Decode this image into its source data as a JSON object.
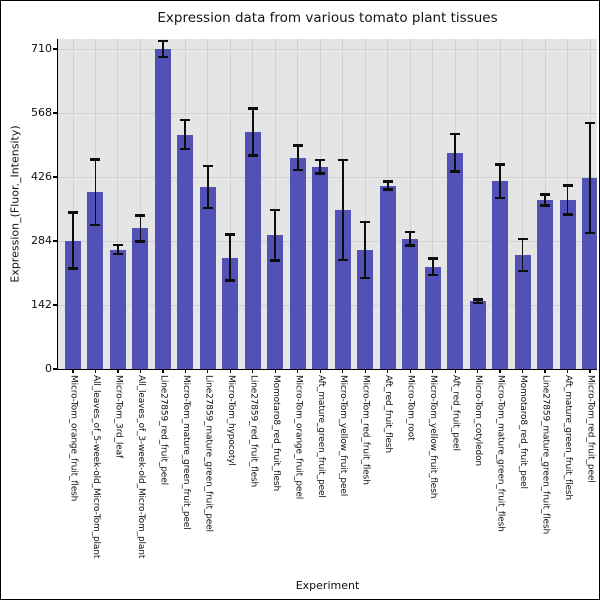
{
  "chart_data": {
    "type": "bar",
    "title": "Expression data from various tomato plant tissues",
    "xlabel": "Experiment",
    "ylabel": "Expression_(Fluor._Intensity)",
    "ylim": [
      0,
      732
    ],
    "yticks": [
      0,
      142,
      284,
      426,
      568,
      710
    ],
    "grid": true,
    "legend_position": "none",
    "bar_color": "#5251b6",
    "error_color": "#0d0d0d",
    "plot_background": "#e5e5e5",
    "grid_color": "#d2d2d2",
    "categories": [
      "Micro-Tom_orange_fruit_flesh",
      "All_leaves_of_5-week-old_Micro-Tom_plant",
      "Micro-Tom_3rd_leaf",
      "All_leaves_of_3-week-old_Micro-Tom_plant",
      "Line27859_red_fruit_peel",
      "Micro-Tom_mature_green_fruit_peel",
      "Line27859_mature_green_fruit_peel",
      "Micro-Tom_hypocotyl",
      "Line27859_red_fruit_flesh",
      "Momotaro8_red_fruit_flesh",
      "Micro-Tom_orange_fruit_peel",
      "Aft_mature_green_fruit_peel",
      "Micro-Tom_yellow_fruit_peel",
      "Micro-Tom_red_fruit_flesh",
      "Aft_red_fruit_flesh",
      "Micro-Tom_root",
      "Micro-Tom_yellow_fruit_flesh",
      "Aft_red_fruit_peel",
      "Micro-Tom_cotyledon",
      "Micro-Tom_mature_green_fruit_flesh",
      "Momotaro8_red_fruit_peel",
      "Line27859_mature_green_fruit_flesh",
      "Aft_mature_green_fruit_flesh",
      "Micro-Tom_red_fruit_peel"
    ],
    "values": [
      285,
      392,
      265,
      312,
      710,
      520,
      404,
      247,
      526,
      297,
      469,
      449,
      353,
      264,
      407,
      289,
      227,
      480,
      150,
      417,
      253,
      375,
      375,
      424
    ],
    "errors": [
      62,
      73,
      10,
      29,
      18,
      32,
      47,
      51,
      52,
      56,
      27,
      15,
      111,
      62,
      9,
      15,
      18,
      42,
      4,
      37,
      35,
      12,
      32,
      122
    ]
  }
}
